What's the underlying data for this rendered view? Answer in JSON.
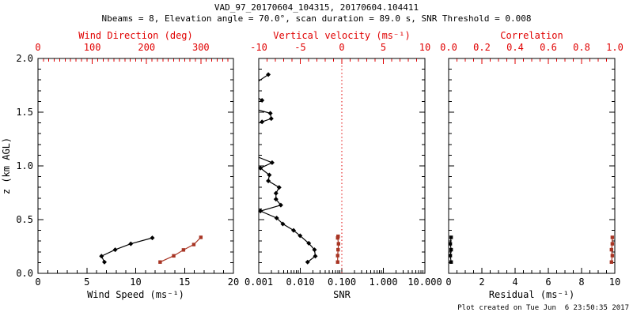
{
  "title": "VAD_97_20170604_104315, 20170604.104411",
  "subtitle": "Nbeams = 8, Elevation angle = 70.0°, scan duration = 89.0 s, SNR Threshold = 0.008",
  "footer": "Plot created on Tue Jun  6 23:50:35 2017",
  "colors": {
    "axis_red": "#e00000",
    "data_red": "#a83524",
    "black": "#000000",
    "background": "#ffffff"
  },
  "y_axis": {
    "label": "z (km AGL)",
    "min": 0,
    "max": 2,
    "ticks": [
      "0.0",
      "0.5",
      "1.0",
      "1.5",
      "2.0"
    ],
    "minor_step": 0.1
  },
  "chart_data": [
    {
      "type": "line",
      "panel": "wind-profile",
      "x_bottom": {
        "label": "Wind Speed (ms⁻¹)",
        "min": 0,
        "max": 20,
        "ticks": [
          "0",
          "5",
          "10",
          "15",
          "20"
        ],
        "minor_step": 1,
        "color": "black"
      },
      "x_top": {
        "label": "Wind Direction (deg)",
        "min": 0,
        "max": 360,
        "ticks": [
          "0",
          "100",
          "200",
          "300"
        ],
        "minor_step": 10,
        "color": "red"
      },
      "series": [
        {
          "name": "wind-speed",
          "axis": "bottom",
          "color": "black",
          "marker": "diamond",
          "segments": [
            [
              [
                6.8,
                0.105
              ],
              [
                6.5,
                0.16
              ],
              [
                7.9,
                0.22
              ],
              [
                9.5,
                0.275
              ],
              [
                11.7,
                0.33
              ]
            ]
          ]
        },
        {
          "name": "wind-direction",
          "axis": "top",
          "color": "red",
          "marker": "square",
          "segments": [
            [
              [
                225,
                0.105
              ],
              [
                250,
                0.163
              ],
              [
                268,
                0.218
              ],
              [
                287,
                0.268
              ],
              [
                300,
                0.335
              ]
            ]
          ]
        }
      ]
    },
    {
      "type": "line",
      "panel": "snr-and-vertical-velocity",
      "x_bottom": {
        "label": "SNR",
        "min": 0.001,
        "max": 10,
        "log": true,
        "ticks": [
          "0.001",
          "0.010",
          "0.100",
          "1.000",
          "10.000"
        ],
        "color": "black"
      },
      "x_top": {
        "label": "Vertical velocity (ms⁻¹)",
        "min": -10,
        "max": 10,
        "ticks": [
          "-10",
          "-5",
          "0",
          "5",
          "10"
        ],
        "minor_step": 1,
        "color": "red"
      },
      "zero_line": {
        "axis": "top",
        "value": 0,
        "style": "dotted",
        "color": "red"
      },
      "series": [
        {
          "name": "snr",
          "axis": "bottom",
          "color": "black",
          "marker": "diamond",
          "segments": [
            [
              [
                0.0017,
                1.85
              ],
              [
                0.001,
                1.79
              ]
            ],
            [
              [
                0.001,
                1.63
              ],
              [
                0.0012,
                1.61
              ]
            ],
            [
              [
                0.001,
                1.52
              ],
              [
                0.0019,
                1.49
              ],
              [
                0.002,
                1.44
              ],
              [
                0.0012,
                1.41
              ]
            ],
            [
              [
                0.001,
                1.08
              ],
              [
                0.0021,
                1.03
              ],
              [
                0.0011,
                0.98
              ],
              [
                0.0018,
                0.915
              ],
              [
                0.0017,
                0.86
              ],
              [
                0.0031,
                0.8
              ],
              [
                0.0026,
                0.745
              ],
              [
                0.0026,
                0.69
              ],
              [
                0.0034,
                0.635
              ],
              [
                0.0011,
                0.58
              ],
              [
                0.0027,
                0.515
              ],
              [
                0.0038,
                0.46
              ],
              [
                0.0069,
                0.4
              ],
              [
                0.0099,
                0.35
              ],
              [
                0.016,
                0.28
              ],
              [
                0.022,
                0.22
              ],
              [
                0.023,
                0.16
              ],
              [
                0.015,
                0.105
              ]
            ]
          ]
        },
        {
          "name": "vertical-velocity",
          "axis": "top",
          "color": "red",
          "marker": "square",
          "segments": [
            [
              [
                -0.45,
                0.345
              ],
              [
                -0.5,
                0.33
              ],
              [
                -0.4,
                0.275
              ],
              [
                -0.45,
                0.22
              ],
              [
                -0.5,
                0.165
              ],
              [
                -0.5,
                0.105
              ]
            ]
          ]
        }
      ]
    },
    {
      "type": "line",
      "panel": "residual-and-correlation",
      "x_bottom": {
        "label": "Residual (ms⁻¹)",
        "min": 0,
        "max": 10,
        "ticks": [
          "0",
          "2",
          "4",
          "6",
          "8",
          "10"
        ],
        "minor_step": 0.5,
        "color": "black"
      },
      "x_top": {
        "label": "Correlation",
        "min": 0,
        "max": 1,
        "ticks": [
          "0.0",
          "0.2",
          "0.4",
          "0.6",
          "0.8",
          "1.0"
        ],
        "minor_step": 0.05,
        "color": "red"
      },
      "series": [
        {
          "name": "residual",
          "axis": "bottom",
          "color": "black",
          "marker": "square",
          "segments": [
            [
              [
                0.15,
                0.335
              ],
              [
                0.1,
                0.275
              ],
              [
                0.15,
                0.22
              ],
              [
                0.1,
                0.165
              ],
              [
                0.15,
                0.105
              ]
            ]
          ]
        },
        {
          "name": "correlation",
          "axis": "top",
          "color": "red",
          "marker": "square",
          "segments": [
            [
              [
                0.985,
                0.335
              ],
              [
                0.985,
                0.275
              ],
              [
                0.98,
                0.22
              ],
              [
                0.985,
                0.165
              ],
              [
                0.98,
                0.105
              ]
            ]
          ]
        }
      ]
    }
  ]
}
